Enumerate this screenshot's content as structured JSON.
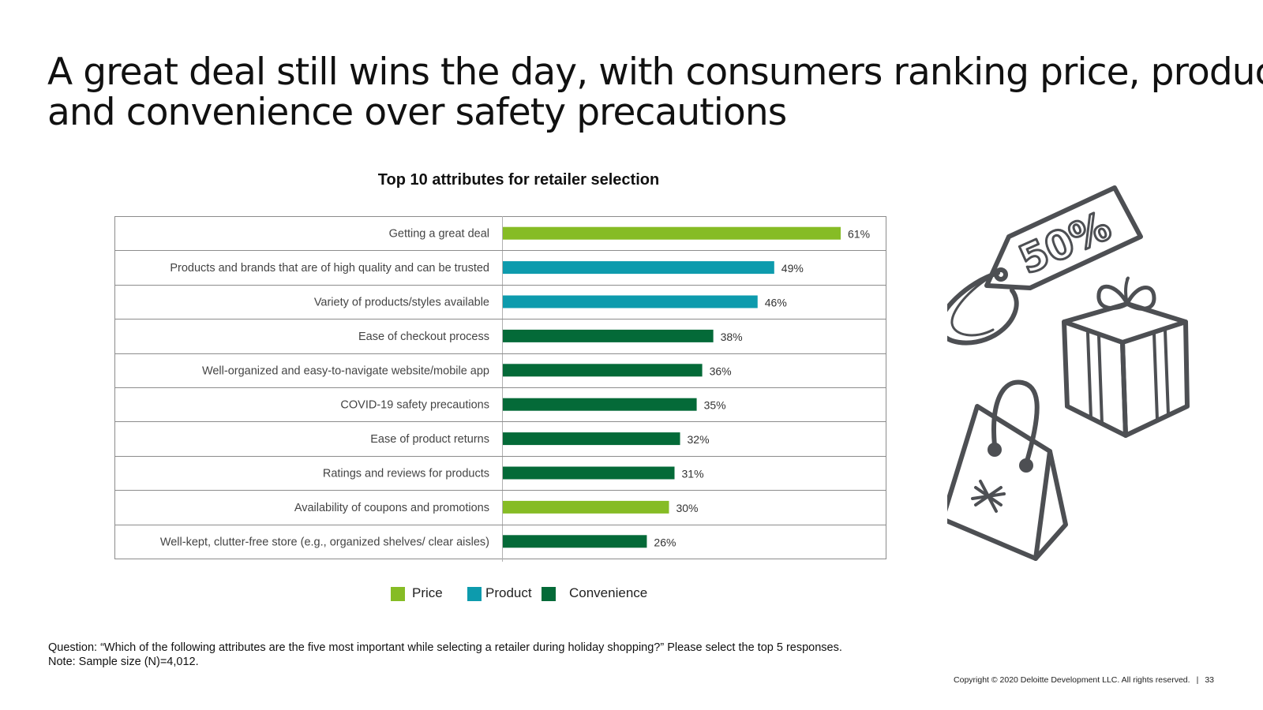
{
  "title": {
    "line1": "A great deal still wins the day, with consumers ranking price, product,",
    "line2": "and convenience over safety precautions"
  },
  "chart_data": {
    "type": "bar",
    "orientation": "horizontal",
    "title": "Top 10 attributes for retailer selection",
    "categories": [
      "Getting a great deal",
      "Products and brands that are of high quality and can be trusted",
      "Variety of products/styles available",
      "Ease of checkout process",
      "Well-organized and easy-to-navigate website/mobile app",
      "COVID-19 safety precautions",
      "Ease of product returns",
      "Ratings and reviews for products",
      "Availability of coupons and promotions",
      "Well-kept, clutter-free store (e.g., organized shelves/ clear aisles)"
    ],
    "values": [
      61,
      49,
      46,
      38,
      36,
      35,
      32,
      31,
      30,
      26
    ],
    "value_labels": [
      "61%",
      "49%",
      "46%",
      "38%",
      "36%",
      "35%",
      "32%",
      "31%",
      "30%",
      "26%"
    ],
    "groups": [
      "Price",
      "Product",
      "Product",
      "Convenience",
      "Convenience",
      "Convenience",
      "Convenience",
      "Convenience",
      "Price",
      "Convenience"
    ],
    "unit": "%",
    "xlim": [
      0,
      64
    ],
    "xlabel": "",
    "ylabel": "",
    "legend": [
      {
        "name": "Price",
        "color": "#86bc25"
      },
      {
        "name": "Product",
        "color": "#0d9bad"
      },
      {
        "name": "Convenience",
        "color": "#046a38"
      }
    ],
    "legend_position": "bottom"
  },
  "footnote": {
    "question": "Question: “Which of the following attributes are the five most important while selecting a retailer during holiday shopping?” Please select the top 5 responses.",
    "note": "Note: Sample size (N)=4,012."
  },
  "copyright": {
    "text": "Copyright © 2020 Deloitte Development LLC. All rights reserved.",
    "separator": "|",
    "page_number": "33"
  },
  "illustration": {
    "tag_text": "50%",
    "icons": [
      "price-tag-icon",
      "gift-box-icon",
      "shopping-bag-icon",
      "snowflake-icon"
    ]
  }
}
